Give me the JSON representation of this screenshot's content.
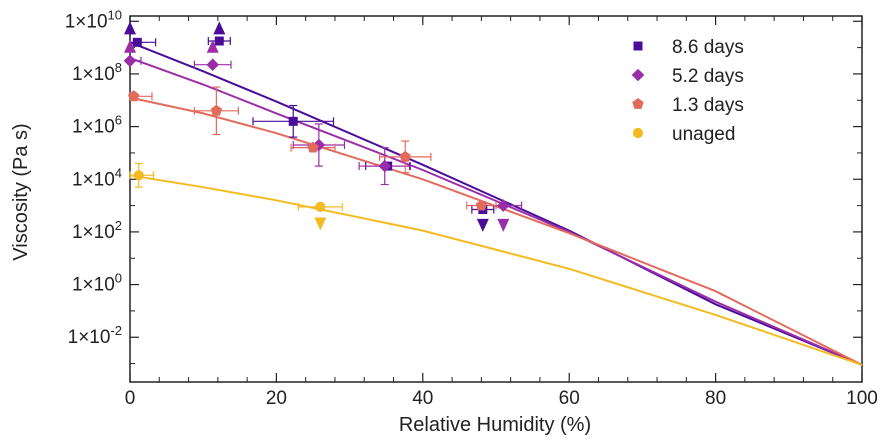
{
  "chart_data": {
    "type": "scatter",
    "xlabel": "Relative Humidity (%)",
    "ylabel": "Viscosity (Pa s)",
    "xlim": [
      0,
      100
    ],
    "ylim_log10": [
      -3.7,
      10.2
    ],
    "yscale": "log",
    "x_ticks": [
      0,
      20,
      40,
      60,
      80,
      100
    ],
    "x_tick_labels": [
      "0",
      "20",
      "40",
      "60",
      "80",
      "100"
    ],
    "y_ticks_log10": [
      -2,
      0,
      2,
      4,
      6,
      8,
      10
    ],
    "y_tick_labels": [
      "1×10-2",
      "1×100",
      "1×102",
      "1×104",
      "1×106",
      "1×108",
      "1×1010"
    ],
    "legend_position": "top-right",
    "grid": false,
    "series": [
      {
        "name": "8.6 days",
        "marker": "square",
        "color": "#4a0c9a",
        "points": [
          {
            "x": 1.0,
            "log10y": 9.2,
            "xerr": 2.5
          },
          {
            "x": 12.2,
            "log10y": 9.25,
            "xerr": 1.5
          },
          {
            "x": 22.3,
            "log10y": 6.2,
            "xerr": 5.5,
            "log10yerr": 0.6
          },
          {
            "x": 35.2,
            "log10y": 4.5,
            "xerr": 3.0
          },
          {
            "x": 48.2,
            "log10y": 2.85,
            "xerr": 1.5
          }
        ],
        "limits": [
          {
            "x": 0.0,
            "log10y": 9.75,
            "dir": "up"
          },
          {
            "x": 12.2,
            "log10y": 9.75,
            "dir": "up"
          },
          {
            "x": 48.2,
            "log10y": 2.25,
            "dir": "down"
          }
        ],
        "fit_log10": [
          [
            0,
            9.2
          ],
          [
            10,
            8.1
          ],
          [
            20,
            6.95
          ],
          [
            40,
            4.55
          ],
          [
            60,
            2.05
          ],
          [
            80,
            -0.75
          ],
          [
            100,
            -3.05
          ]
        ]
      },
      {
        "name": "5.2 days",
        "marker": "diamond",
        "color": "#9b2ea8",
        "points": [
          {
            "x": 0.0,
            "log10y": 8.5,
            "xerr": 1.5
          },
          {
            "x": 11.3,
            "log10y": 8.35,
            "xerr": 2.5
          },
          {
            "x": 25.8,
            "log10y": 5.3,
            "xerr": 3.5,
            "log10yerr": 0.8
          },
          {
            "x": 34.8,
            "log10y": 4.5,
            "xerr": 3.5,
            "log10yerr": 0.7
          },
          {
            "x": 51.0,
            "log10y": 3.0,
            "xerr": 2.5
          }
        ],
        "limits": [
          {
            "x": 0.0,
            "log10y": 9.05,
            "dir": "up"
          },
          {
            "x": 11.3,
            "log10y": 9.05,
            "dir": "up"
          },
          {
            "x": 51.0,
            "log10y": 2.25,
            "dir": "down"
          }
        ],
        "fit_log10": [
          [
            0,
            8.6
          ],
          [
            10,
            7.6
          ],
          [
            20,
            6.5
          ],
          [
            40,
            4.35
          ],
          [
            60,
            2.0
          ],
          [
            80,
            -0.65
          ],
          [
            100,
            -3.05
          ]
        ]
      },
      {
        "name": "1.3 days",
        "marker": "pentagon",
        "color": "#e36b5d",
        "points": [
          {
            "x": 0.5,
            "log10y": 7.15,
            "xerr": 2.5
          },
          {
            "x": 11.8,
            "log10y": 6.6,
            "xerr": 3.0,
            "log10yerr": 0.9
          },
          {
            "x": 25.0,
            "log10y": 5.2,
            "xerr": 3.0
          },
          {
            "x": 37.6,
            "log10y": 4.85,
            "xerr": 3.5,
            "log10yerr": 0.6
          },
          {
            "x": 48.0,
            "log10y": 3.0,
            "xerr": 2.0
          }
        ],
        "limits": [],
        "fit_log10": [
          [
            0,
            7.1
          ],
          [
            10,
            6.5
          ],
          [
            20,
            5.75
          ],
          [
            40,
            4.0
          ],
          [
            60,
            1.95
          ],
          [
            80,
            -0.25
          ],
          [
            100,
            -3.05
          ]
        ]
      },
      {
        "name": "unaged",
        "marker": "circle",
        "color": "#f4bb20",
        "points": [
          {
            "x": 1.2,
            "log10y": 4.15,
            "xerr": 2.0,
            "log10yerr": 0.45
          },
          {
            "x": 26.0,
            "log10y": 2.95,
            "xerr": 3.0
          }
        ],
        "limits": [
          {
            "x": 26.0,
            "log10y": 2.3,
            "dir": "down"
          }
        ],
        "fit_log10": [
          [
            0,
            4.15
          ],
          [
            10,
            3.7
          ],
          [
            20,
            3.2
          ],
          [
            40,
            2.05
          ],
          [
            60,
            0.6
          ],
          [
            80,
            -1.15
          ],
          [
            100,
            -3.05
          ]
        ]
      }
    ]
  }
}
